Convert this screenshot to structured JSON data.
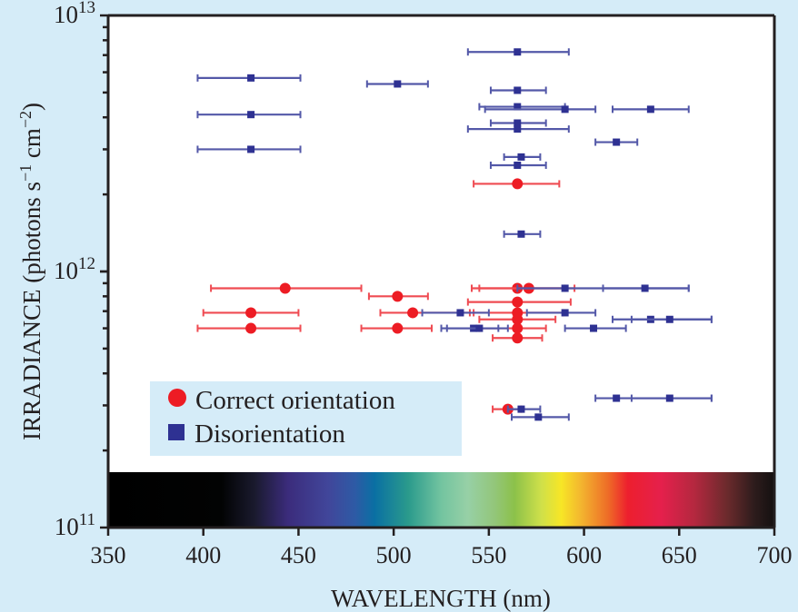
{
  "chart_data": {
    "type": "scatter",
    "title": "",
    "xlabel": "WAVELENGTH (nm)",
    "ylabel": "IRRADIANCE (photons s⁻¹ cm⁻²)",
    "xlim": [
      350,
      700
    ],
    "ylim": [
      100000000000.0,
      10000000000000.0
    ],
    "yscale": "log",
    "x_ticks": [
      350,
      400,
      450,
      500,
      550,
      600,
      650,
      700
    ],
    "x_tick_labels": [
      "350",
      "400",
      "450",
      "500",
      "550",
      "600",
      "650",
      "700"
    ],
    "y_tick_labels": [
      {
        "value": 10000000000000.0,
        "base": "10",
        "exp": "13"
      },
      {
        "value": 1000000000000.0,
        "base": "10",
        "exp": "12"
      },
      {
        "value": 100000000000.0,
        "base": "10",
        "exp": "11"
      }
    ],
    "grid": false,
    "legend_position": "bottom-left",
    "spectrum_band": "visible spectrum color bar along bottom of plot (black → violet → blue → green → yellow → orange → red → dark)",
    "series": [
      {
        "name": "Correct orientation",
        "marker": "circle",
        "color": "#ed1c24",
        "points": [
          {
            "x": 565,
            "y": 2200000000000.0,
            "xerr": [
              542,
              587
            ]
          },
          {
            "x": 443,
            "y": 860000000000.0,
            "xerr": [
              404,
              483
            ]
          },
          {
            "x": 565,
            "y": 860000000000.0,
            "xerr": [
              541,
              590
            ]
          },
          {
            "x": 571,
            "y": 860000000000.0,
            "xerr": [
              545,
              595
            ]
          },
          {
            "x": 502,
            "y": 800000000000.0,
            "xerr": [
              487,
              518
            ]
          },
          {
            "x": 565,
            "y": 760000000000.0,
            "xerr": [
              539,
              593
            ]
          },
          {
            "x": 425,
            "y": 690000000000.0,
            "xerr": [
              400,
              450
            ]
          },
          {
            "x": 510,
            "y": 690000000000.0,
            "xerr": [
              493,
              540
            ]
          },
          {
            "x": 565,
            "y": 690000000000.0,
            "xerr": [
              542,
              589
            ]
          },
          {
            "x": 565,
            "y": 650000000000.0,
            "xerr": [
              545,
              585
            ]
          },
          {
            "x": 425,
            "y": 600000000000.0,
            "xerr": [
              397,
              451
            ]
          },
          {
            "x": 502,
            "y": 600000000000.0,
            "xerr": [
              483,
              520
            ]
          },
          {
            "x": 565,
            "y": 600000000000.0,
            "xerr": [
              545,
              580
            ]
          },
          {
            "x": 565,
            "y": 550000000000.0,
            "xerr": [
              552,
              578
            ]
          },
          {
            "x": 560,
            "y": 290000000000.0,
            "xerr": [
              552,
              567
            ]
          }
        ]
      },
      {
        "name": "Disorientation",
        "marker": "square",
        "color": "#2e3192",
        "points": [
          {
            "x": 565,
            "y": 7200000000000.0,
            "xerr": [
              539,
              592
            ]
          },
          {
            "x": 425,
            "y": 5700000000000.0,
            "xerr": [
              397,
              451
            ]
          },
          {
            "x": 502,
            "y": 5400000000000.0,
            "xerr": [
              486,
              518
            ]
          },
          {
            "x": 565,
            "y": 5100000000000.0,
            "xerr": [
              551,
              580
            ]
          },
          {
            "x": 565,
            "y": 4400000000000.0,
            "xerr": [
              545,
              590
            ]
          },
          {
            "x": 590,
            "y": 4300000000000.0,
            "xerr": [
              548,
              606
            ]
          },
          {
            "x": 635,
            "y": 4300000000000.0,
            "xerr": [
              615,
              655
            ]
          },
          {
            "x": 425,
            "y": 4100000000000.0,
            "xerr": [
              397,
              451
            ]
          },
          {
            "x": 565,
            "y": 3800000000000.0,
            "xerr": [
              551,
              580
            ]
          },
          {
            "x": 565,
            "y": 3600000000000.0,
            "xerr": [
              539,
              592
            ]
          },
          {
            "x": 425,
            "y": 3000000000000.0,
            "xerr": [
              397,
              451
            ]
          },
          {
            "x": 617,
            "y": 3200000000000.0,
            "xerr": [
              606,
              628
            ]
          },
          {
            "x": 567,
            "y": 2800000000000.0,
            "xerr": [
              558,
              577
            ]
          },
          {
            "x": 565,
            "y": 2600000000000.0,
            "xerr": [
              551,
              580
            ]
          },
          {
            "x": 567,
            "y": 1400000000000.0,
            "xerr": [
              558,
              577
            ]
          },
          {
            "x": 590,
            "y": 860000000000.0,
            "xerr": [
              565,
              655
            ]
          },
          {
            "x": 632,
            "y": 860000000000.0,
            "xerr": [
              610,
              655
            ]
          },
          {
            "x": 535,
            "y": 690000000000.0,
            "xerr": [
              515,
              550
            ]
          },
          {
            "x": 590,
            "y": 690000000000.0,
            "xerr": [
              570,
              606
            ]
          },
          {
            "x": 635,
            "y": 650000000000.0,
            "xerr": [
              615,
              667
            ]
          },
          {
            "x": 645,
            "y": 650000000000.0,
            "xerr": [
              625,
              667
            ]
          },
          {
            "x": 542,
            "y": 600000000000.0,
            "xerr": [
              525,
              555
            ]
          },
          {
            "x": 545,
            "y": 600000000000.0,
            "xerr": [
              528,
              560
            ]
          },
          {
            "x": 605,
            "y": 600000000000.0,
            "xerr": [
              590,
              622
            ]
          },
          {
            "x": 617,
            "y": 320000000000.0,
            "xerr": [
              606,
              667
            ]
          },
          {
            "x": 645,
            "y": 320000000000.0,
            "xerr": [
              625,
              667
            ]
          },
          {
            "x": 567,
            "y": 290000000000.0,
            "xerr": [
              560,
              577
            ]
          },
          {
            "x": 576,
            "y": 270000000000.0,
            "xerr": [
              562,
              592
            ]
          }
        ]
      }
    ]
  },
  "legend": {
    "items": [
      {
        "label": "Correct orientation",
        "marker": "circle",
        "color": "#ed1c24"
      },
      {
        "label": "Disorientation",
        "marker": "square",
        "color": "#2e3192"
      }
    ]
  }
}
